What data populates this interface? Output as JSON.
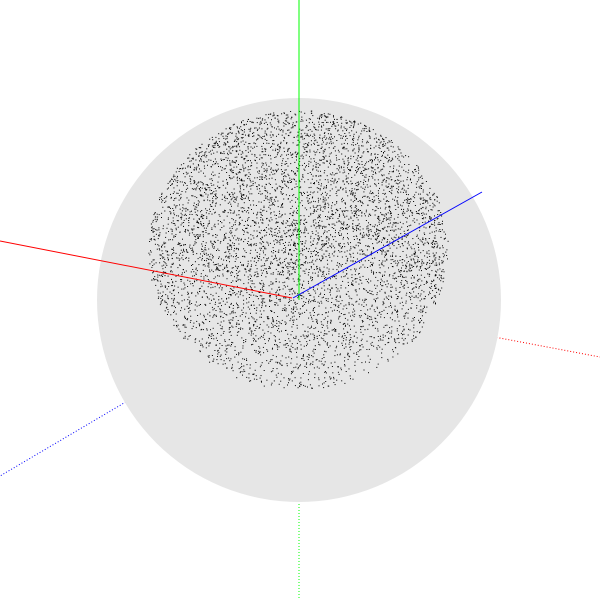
{
  "scene": {
    "background": "#ffffff",
    "sphere_fill": "#e6e6e6",
    "point_color": "#000000",
    "point_count": 6000,
    "axes": {
      "x_color": "#ff0000",
      "y_color": "#00ff00",
      "z_color": "#0000ff"
    }
  }
}
